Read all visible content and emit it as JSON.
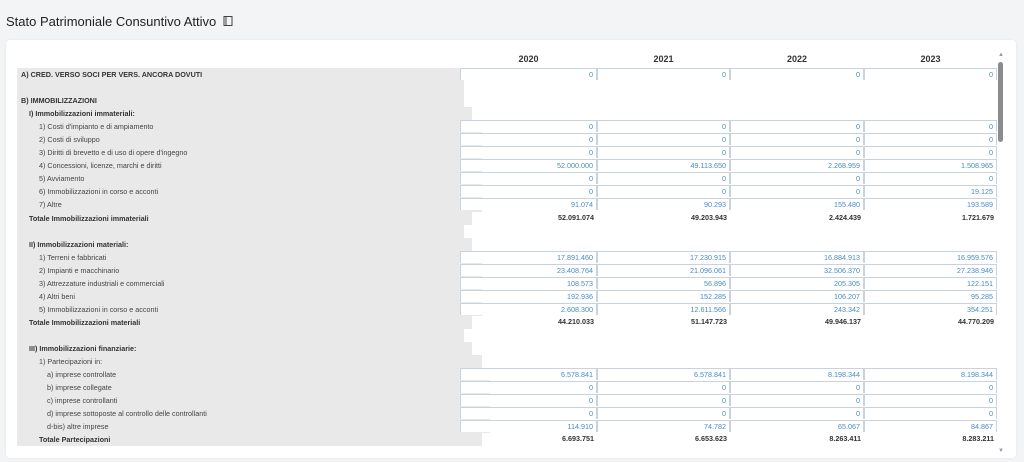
{
  "page": {
    "title": "Stato Patrimoniale Consuntivo Attivo",
    "title_icon": "book-icon"
  },
  "table": {
    "years": [
      "2020",
      "2021",
      "2022",
      "2023"
    ],
    "rows": [
      {
        "label": "A) CRED. VERSO SOCI PER VERS. ANCORA DOVUTI",
        "indent": 0,
        "bold": true,
        "type": "data",
        "values": [
          "0",
          "0",
          "0",
          "0"
        ]
      },
      {
        "label": "",
        "indent": 0,
        "bold": false,
        "type": "blank",
        "values": [
          "",
          "",
          "",
          ""
        ]
      },
      {
        "label": "B) IMMOBILIZZAZIONI",
        "indent": 0,
        "bold": true,
        "type": "header",
        "values": [
          "",
          "",
          "",
          ""
        ]
      },
      {
        "label": "I) Immobilizzazioni immateriali:",
        "indent": 1,
        "bold": true,
        "type": "header",
        "values": [
          "",
          "",
          "",
          ""
        ]
      },
      {
        "label": "1) Costi d'impianto e di ampiamento",
        "indent": 2,
        "bold": false,
        "type": "data",
        "values": [
          "0",
          "0",
          "0",
          "0"
        ]
      },
      {
        "label": "2) Costi di sviluppo",
        "indent": 2,
        "bold": false,
        "type": "data",
        "values": [
          "0",
          "0",
          "0",
          "0"
        ]
      },
      {
        "label": "3) Diritti di brevetto e di uso di opere d'ingegno",
        "indent": 2,
        "bold": false,
        "type": "data",
        "values": [
          "0",
          "0",
          "0",
          "0"
        ]
      },
      {
        "label": "4) Concessioni, licenze, marchi e diritti",
        "indent": 2,
        "bold": false,
        "type": "data",
        "values": [
          "52.000.000",
          "49.113.650",
          "2.268.959",
          "1.508.965"
        ]
      },
      {
        "label": "5) Avviamento",
        "indent": 2,
        "bold": false,
        "type": "data",
        "values": [
          "0",
          "0",
          "0",
          "0"
        ]
      },
      {
        "label": "6) Immobilizzazioni in corso e acconti",
        "indent": 2,
        "bold": false,
        "type": "data",
        "values": [
          "0",
          "0",
          "0",
          "19.125"
        ]
      },
      {
        "label": "7) Altre",
        "indent": 2,
        "bold": false,
        "type": "data",
        "values": [
          "91.074",
          "90.293",
          "155.480",
          "193.589"
        ]
      },
      {
        "label": "Totale Immobilizzazioni immateriali",
        "indent": 1,
        "bold": true,
        "type": "total",
        "values": [
          "52.091.074",
          "49.203.943",
          "2.424.439",
          "1.721.679"
        ]
      },
      {
        "label": "",
        "indent": 0,
        "bold": false,
        "type": "blank",
        "values": [
          "",
          "",
          "",
          ""
        ]
      },
      {
        "label": "II) Immobilizzazioni materiali:",
        "indent": 1,
        "bold": true,
        "type": "header",
        "values": [
          "",
          "",
          "",
          ""
        ]
      },
      {
        "label": "1) Terreni e fabbricati",
        "indent": 2,
        "bold": false,
        "type": "data",
        "values": [
          "17.891.460",
          "17.230.915",
          "16.884.913",
          "16.959.576"
        ]
      },
      {
        "label": "2) Impianti e macchinario",
        "indent": 2,
        "bold": false,
        "type": "data",
        "values": [
          "23.408.764",
          "21.096.061",
          "32.506.370",
          "27.238.946"
        ]
      },
      {
        "label": "3) Attrezzature industriali e commerciali",
        "indent": 2,
        "bold": false,
        "type": "data",
        "values": [
          "108.573",
          "56.896",
          "205.305",
          "122.151"
        ]
      },
      {
        "label": "4) Altri beni",
        "indent": 2,
        "bold": false,
        "type": "data",
        "values": [
          "192.936",
          "152.285",
          "106.207",
          "95.285"
        ]
      },
      {
        "label": "5) Immobilizzazioni in corso e acconti",
        "indent": 2,
        "bold": false,
        "type": "data",
        "values": [
          "2.608.300",
          "12.611.566",
          "243.342",
          "354.251"
        ]
      },
      {
        "label": "Totale Immobilizzazioni materiali",
        "indent": 1,
        "bold": true,
        "type": "total",
        "values": [
          "44.210.033",
          "51.147.723",
          "49.946.137",
          "44.770.209"
        ]
      },
      {
        "label": "",
        "indent": 0,
        "bold": false,
        "type": "blank",
        "values": [
          "",
          "",
          "",
          ""
        ]
      },
      {
        "label": "III) Immobilizzazioni finanziarie:",
        "indent": 1,
        "bold": true,
        "type": "header",
        "values": [
          "",
          "",
          "",
          ""
        ]
      },
      {
        "label": "1) Partecipazioni in:",
        "indent": 2,
        "bold": false,
        "type": "header",
        "values": [
          "",
          "",
          "",
          ""
        ]
      },
      {
        "label": "a) imprese controllate",
        "indent": 3,
        "bold": false,
        "type": "data",
        "values": [
          "6.578.841",
          "6.578.841",
          "8.198.344",
          "8.198.344"
        ]
      },
      {
        "label": "b) imprese collegate",
        "indent": 3,
        "bold": false,
        "type": "data",
        "values": [
          "0",
          "0",
          "0",
          "0"
        ]
      },
      {
        "label": "c) imprese controllanti",
        "indent": 3,
        "bold": false,
        "type": "data",
        "values": [
          "0",
          "0",
          "0",
          "0"
        ]
      },
      {
        "label": "d) imprese sottoposte al controllo delle controllanti",
        "indent": 3,
        "bold": false,
        "type": "data",
        "values": [
          "0",
          "0",
          "0",
          "0"
        ]
      },
      {
        "label": "d-bis) altre imprese",
        "indent": 3,
        "bold": false,
        "type": "data",
        "values": [
          "114.910",
          "74.782",
          "65.067",
          "84.867"
        ]
      },
      {
        "label": "Totale Partecipazioni",
        "indent": 2,
        "bold": true,
        "type": "total",
        "values": [
          "6.693.751",
          "6.653.623",
          "8.263.411",
          "8.283.211"
        ]
      }
    ]
  },
  "scrollbar": {
    "up_icon": "triangle-up-icon",
    "down_icon": "triangle-down-icon"
  }
}
